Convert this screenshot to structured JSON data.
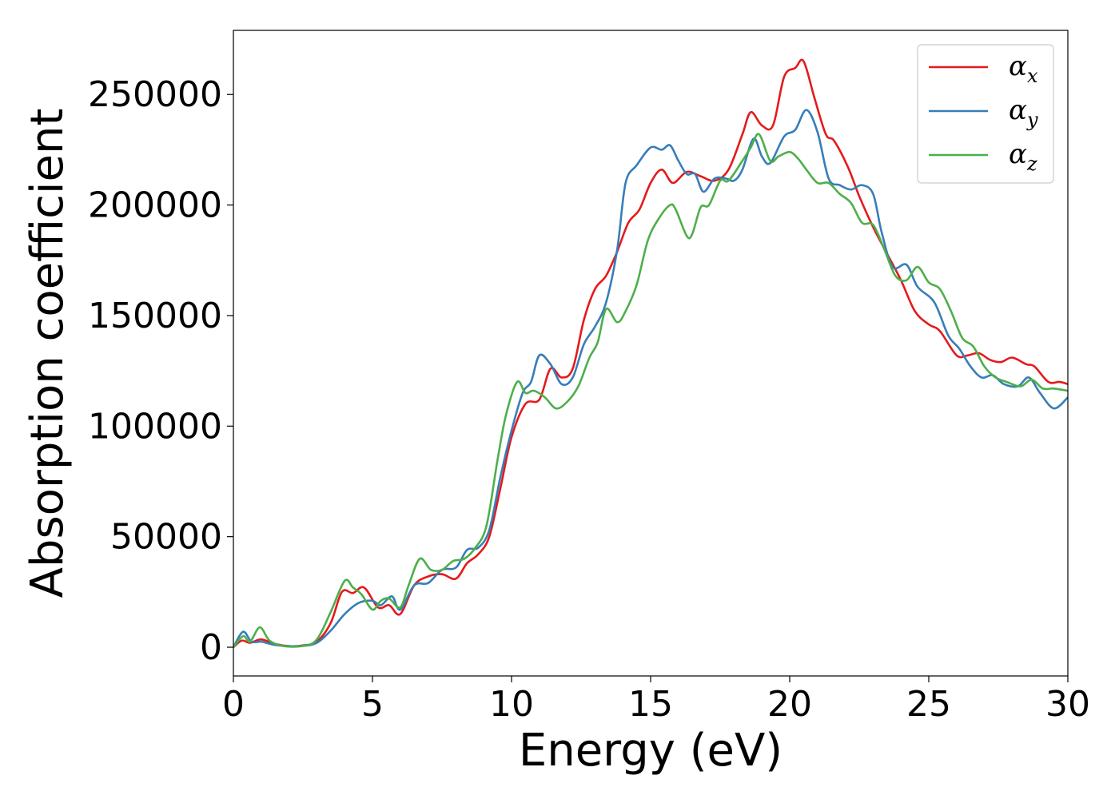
{
  "chart_data": {
    "type": "line",
    "title": "",
    "xlabel": "Energy (eV)",
    "ylabel": "Absorption coefficient",
    "xlim": [
      0,
      30
    ],
    "ylim": [
      -13000,
      279000
    ],
    "xticks": [
      0,
      5,
      10,
      15,
      20,
      25,
      30
    ],
    "yticks": [
      0,
      50000,
      100000,
      150000,
      200000,
      250000
    ],
    "grid": false,
    "legend_position": "top-right",
    "series": [
      {
        "name": "αx",
        "name_base": "α",
        "name_sub": "x",
        "color": "#e41a1c",
        "points": [
          [
            0,
            0
          ],
          [
            0.3,
            3000
          ],
          [
            0.6,
            2000
          ],
          [
            1.0,
            3500
          ],
          [
            1.5,
            1500
          ],
          [
            2.0,
            500
          ],
          [
            2.5,
            800
          ],
          [
            3.0,
            2500
          ],
          [
            3.5,
            11000
          ],
          [
            3.9,
            25000
          ],
          [
            4.3,
            24500
          ],
          [
            4.7,
            27000
          ],
          [
            5.2,
            18000
          ],
          [
            5.6,
            19000
          ],
          [
            6.0,
            15000
          ],
          [
            6.5,
            28000
          ],
          [
            7.0,
            32000
          ],
          [
            7.5,
            33000
          ],
          [
            8.0,
            31000
          ],
          [
            8.4,
            38000
          ],
          [
            8.8,
            42000
          ],
          [
            9.2,
            50000
          ],
          [
            9.6,
            72000
          ],
          [
            10.0,
            95000
          ],
          [
            10.5,
            110000
          ],
          [
            11.0,
            112000
          ],
          [
            11.4,
            126000
          ],
          [
            11.8,
            122000
          ],
          [
            12.2,
            126000
          ],
          [
            12.6,
            148000
          ],
          [
            13.0,
            162000
          ],
          [
            13.4,
            168000
          ],
          [
            13.8,
            179000
          ],
          [
            14.2,
            192000
          ],
          [
            14.6,
            198000
          ],
          [
            15.0,
            210000
          ],
          [
            15.4,
            216000
          ],
          [
            15.8,
            210000
          ],
          [
            16.3,
            215000
          ],
          [
            16.8,
            213000
          ],
          [
            17.3,
            211000
          ],
          [
            17.8,
            216000
          ],
          [
            18.3,
            232000
          ],
          [
            18.6,
            242000
          ],
          [
            19.0,
            236000
          ],
          [
            19.4,
            236000
          ],
          [
            19.8,
            258000
          ],
          [
            20.2,
            262000
          ],
          [
            20.5,
            265000
          ],
          [
            20.9,
            248000
          ],
          [
            21.3,
            232000
          ],
          [
            21.6,
            229000
          ],
          [
            22.1,
            217000
          ],
          [
            22.5,
            204000
          ],
          [
            23.0,
            190000
          ],
          [
            23.5,
            178000
          ],
          [
            24.0,
            166000
          ],
          [
            24.5,
            152000
          ],
          [
            25.0,
            146000
          ],
          [
            25.4,
            143000
          ],
          [
            26.0,
            132000
          ],
          [
            26.4,
            132000
          ],
          [
            26.8,
            133000
          ],
          [
            27.2,
            130000
          ],
          [
            27.6,
            129000
          ],
          [
            28.0,
            131000
          ],
          [
            28.5,
            128000
          ],
          [
            28.8,
            127000
          ],
          [
            29.3,
            120000
          ],
          [
            29.7,
            120000
          ],
          [
            30.0,
            119000
          ]
        ]
      },
      {
        "name": "αy",
        "name_base": "α",
        "name_sub": "y",
        "color": "#377eb8",
        "points": [
          [
            0,
            0
          ],
          [
            0.35,
            7000
          ],
          [
            0.65,
            2500
          ],
          [
            1.0,
            2500
          ],
          [
            1.5,
            1000
          ],
          [
            2.0,
            500
          ],
          [
            2.5,
            600
          ],
          [
            3.0,
            2000
          ],
          [
            3.5,
            7500
          ],
          [
            4.0,
            15000
          ],
          [
            4.5,
            20000
          ],
          [
            5.0,
            21000
          ],
          [
            5.3,
            19000
          ],
          [
            5.7,
            23000
          ],
          [
            6.0,
            17000
          ],
          [
            6.5,
            28000
          ],
          [
            7.0,
            29000
          ],
          [
            7.5,
            35000
          ],
          [
            8.0,
            36000
          ],
          [
            8.4,
            44000
          ],
          [
            8.8,
            45000
          ],
          [
            9.2,
            53000
          ],
          [
            9.6,
            77000
          ],
          [
            10.0,
            98000
          ],
          [
            10.4,
            115000
          ],
          [
            10.7,
            120000
          ],
          [
            11.0,
            132000
          ],
          [
            11.4,
            128000
          ],
          [
            11.8,
            119000
          ],
          [
            12.2,
            122000
          ],
          [
            12.6,
            137000
          ],
          [
            13.0,
            145000
          ],
          [
            13.4,
            156000
          ],
          [
            13.8,
            180000
          ],
          [
            14.1,
            210000
          ],
          [
            14.5,
            218000
          ],
          [
            15.0,
            226000
          ],
          [
            15.4,
            225000
          ],
          [
            15.7,
            227000
          ],
          [
            16.0,
            220000
          ],
          [
            16.3,
            214000
          ],
          [
            16.6,
            214000
          ],
          [
            16.9,
            206000
          ],
          [
            17.3,
            212000
          ],
          [
            17.7,
            212000
          ],
          [
            18.0,
            211000
          ],
          [
            18.3,
            216000
          ],
          [
            18.7,
            230000
          ],
          [
            19.0,
            222000
          ],
          [
            19.3,
            219000
          ],
          [
            19.8,
            231000
          ],
          [
            20.2,
            234000
          ],
          [
            20.6,
            243000
          ],
          [
            21.0,
            233000
          ],
          [
            21.4,
            212000
          ],
          [
            21.8,
            209000
          ],
          [
            22.2,
            207000
          ],
          [
            22.6,
            209000
          ],
          [
            23.0,
            205000
          ],
          [
            23.3,
            188000
          ],
          [
            23.7,
            172000
          ],
          [
            24.2,
            173000
          ],
          [
            24.6,
            163000
          ],
          [
            25.2,
            156000
          ],
          [
            25.7,
            141000
          ],
          [
            26.1,
            135000
          ],
          [
            26.5,
            127000
          ],
          [
            26.9,
            122000
          ],
          [
            27.3,
            123000
          ],
          [
            27.7,
            119000
          ],
          [
            28.2,
            118000
          ],
          [
            28.6,
            122000
          ],
          [
            29.0,
            115000
          ],
          [
            29.5,
            108000
          ],
          [
            30.0,
            113000
          ]
        ]
      },
      {
        "name": "αz",
        "name_base": "α",
        "name_sub": "z",
        "color": "#4daf4a",
        "points": [
          [
            0,
            0
          ],
          [
            0.35,
            5000
          ],
          [
            0.6,
            2500
          ],
          [
            0.95,
            9000
          ],
          [
            1.3,
            3000
          ],
          [
            1.8,
            500
          ],
          [
            2.5,
            600
          ],
          [
            3.0,
            3500
          ],
          [
            3.5,
            16000
          ],
          [
            4.0,
            30000
          ],
          [
            4.3,
            27000
          ],
          [
            4.6,
            24000
          ],
          [
            5.0,
            17000
          ],
          [
            5.3,
            21000
          ],
          [
            5.6,
            22000
          ],
          [
            6.0,
            18000
          ],
          [
            6.3,
            28000
          ],
          [
            6.7,
            40000
          ],
          [
            7.1,
            35000
          ],
          [
            7.5,
            35000
          ],
          [
            7.9,
            39000
          ],
          [
            8.3,
            40000
          ],
          [
            8.7,
            45000
          ],
          [
            9.1,
            55000
          ],
          [
            9.5,
            85000
          ],
          [
            9.8,
            105000
          ],
          [
            10.2,
            120000
          ],
          [
            10.5,
            115000
          ],
          [
            10.8,
            116000
          ],
          [
            11.2,
            113000
          ],
          [
            11.6,
            108000
          ],
          [
            12.0,
            111000
          ],
          [
            12.4,
            118000
          ],
          [
            12.8,
            131000
          ],
          [
            13.1,
            138000
          ],
          [
            13.4,
            153000
          ],
          [
            13.8,
            147000
          ],
          [
            14.1,
            152000
          ],
          [
            14.5,
            164000
          ],
          [
            14.9,
            184000
          ],
          [
            15.3,
            194000
          ],
          [
            15.7,
            200000
          ],
          [
            15.9,
            198000
          ],
          [
            16.3,
            186000
          ],
          [
            16.5,
            187000
          ],
          [
            16.8,
            199000
          ],
          [
            17.1,
            200000
          ],
          [
            17.5,
            211000
          ],
          [
            17.8,
            211000
          ],
          [
            18.3,
            220000
          ],
          [
            18.6,
            226000
          ],
          [
            18.9,
            232000
          ],
          [
            19.3,
            220000
          ],
          [
            19.6,
            222000
          ],
          [
            20.0,
            224000
          ],
          [
            20.3,
            221000
          ],
          [
            20.6,
            216000
          ],
          [
            21.0,
            210000
          ],
          [
            21.4,
            210000
          ],
          [
            21.8,
            205000
          ],
          [
            22.2,
            201000
          ],
          [
            22.6,
            192000
          ],
          [
            23.0,
            191000
          ],
          [
            23.4,
            180000
          ],
          [
            23.8,
            168000
          ],
          [
            24.2,
            166000
          ],
          [
            24.6,
            172000
          ],
          [
            25.0,
            165000
          ],
          [
            25.4,
            162000
          ],
          [
            25.8,
            152000
          ],
          [
            26.2,
            140000
          ],
          [
            26.6,
            136000
          ],
          [
            27.0,
            127000
          ],
          [
            27.4,
            122000
          ],
          [
            27.8,
            120000
          ],
          [
            28.3,
            118000
          ],
          [
            28.7,
            121000
          ],
          [
            29.1,
            117000
          ],
          [
            29.5,
            117000
          ],
          [
            30.0,
            116000
          ]
        ]
      }
    ]
  }
}
